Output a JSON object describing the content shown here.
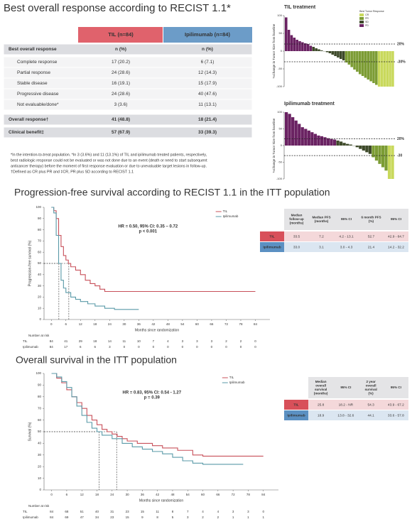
{
  "response_table": {
    "title": "Best overall response according to RECIST 1.1*",
    "columns": [
      "TIL (n=84)",
      "Ipilimumab (n=84)"
    ],
    "rows": [
      [
        "Best overall response",
        "n (%)",
        "n (%)"
      ],
      [
        "Complete response",
        "17 (20.2)",
        "6 (7.1)"
      ],
      [
        "Partial response",
        "24 (28.6)",
        "12 (14.3)"
      ],
      [
        "Stable disease",
        "16 (19.1)",
        "15 (17.9)"
      ],
      [
        "Progressive disease",
        "24 (28.6)",
        "40 (47.6)"
      ],
      [
        "Not evaluable/done*",
        "3 (3.6)",
        "11 (13.1)"
      ],
      [
        "Overall response†",
        "41 (48.8)",
        "18 (21.4)"
      ],
      [
        "Clinical benefit‡",
        "57 (67.9)",
        "33 (39.3)"
      ]
    ],
    "footnotes": [
      "*In the intention-to-treat population. *In 3 (3.6%) and 11 (13.1%) of TIL and ipilimumab treated patients, respectively,",
      "best radiologic response could not be evaluated or was not done due to an event (death or need to start subsequent",
      "anticancer therapy) before the moment of first response evaluation or due to unevaluable target lesions in follow-up.",
      "†Defined as CR plus PR and ‡CR, PR plus SD according to RECIST 1.1"
    ]
  },
  "chart_data": [
    {
      "type": "waterfall",
      "title": "TIL treatment",
      "title_color": "#a0405e",
      "ylabel": "%Change in Tumor Size from baseline",
      "ylim": [
        -100,
        100
      ],
      "yticks": [
        -100,
        -50,
        0,
        50,
        100
      ],
      "legend_title": "Best Tumor Response",
      "ref_lines": [
        {
          "value": 20,
          "label": "20%"
        },
        {
          "value": -30,
          "label": "-30%"
        }
      ],
      "series": [
        {
          "name": "CR",
          "color": "#c9d95c",
          "values": [
            -100,
            -100,
            -100,
            -100,
            -100,
            -100
          ]
        },
        {
          "name": "PR",
          "color": "#7c9c34",
          "values": [
            -32,
            -38,
            -45,
            -52,
            -58,
            -65,
            -70,
            -75,
            -80,
            -85,
            -90,
            -95
          ]
        },
        {
          "name": "SD",
          "color": "#3e4a2a",
          "values": [
            12,
            8,
            5,
            2,
            0,
            -3,
            -6,
            -10,
            -14,
            -18,
            -22,
            -26
          ]
        },
        {
          "name": "PD",
          "color": "#6a2262",
          "values": [
            95,
            60,
            45,
            38,
            32,
            28,
            25,
            22,
            20,
            15
          ]
        }
      ]
    },
    {
      "type": "waterfall",
      "title": "Ipilimumab treatment",
      "title_color": "#4a8aa8",
      "ylabel": "%Change in Tumor Size from baseline",
      "ylim": [
        -100,
        100
      ],
      "yticks": [
        -100,
        -50,
        0,
        50,
        100
      ],
      "ref_lines": [
        {
          "value": 20,
          "label": "20%"
        },
        {
          "value": -30,
          "label": "-30"
        }
      ],
      "series": [
        {
          "name": "CR",
          "color": "#c9d95c",
          "values": [
            -100,
            -100
          ]
        },
        {
          "name": "PR",
          "color": "#7c9c34",
          "values": [
            -35,
            -45,
            -55,
            -65,
            -75
          ]
        },
        {
          "name": "SD",
          "color": "#3e4a2a",
          "values": [
            15,
            12,
            8,
            5,
            3,
            0,
            -5,
            -10,
            -15,
            -20,
            -25
          ]
        },
        {
          "name": "PD",
          "color": "#6a2262",
          "values": [
            100,
            95,
            85,
            75,
            65,
            55,
            50,
            45,
            40,
            35,
            30,
            28,
            25,
            22,
            20,
            18
          ]
        }
      ]
    },
    {
      "type": "step",
      "title": "Progression-free survival according to RECIST 1.1 in the ITT population",
      "xlabel": "Months since randomization",
      "ylabel": "Progression-free survival (%)",
      "xlim": [
        -3,
        90
      ],
      "xticks": [
        0,
        6,
        12,
        18,
        24,
        30,
        36,
        42,
        48,
        54,
        60,
        66,
        72,
        78,
        84
      ],
      "ylim": [
        0,
        100
      ],
      "yticks": [
        0,
        10,
        20,
        30,
        40,
        50,
        60,
        70,
        80,
        90,
        100
      ],
      "annotations": [
        "HR = 0.50, 95% CI: 0.35 – 0.72",
        "p < 0.001"
      ],
      "series": [
        {
          "name": "TIL",
          "color": "#c8505a",
          "x": [
            0,
            1,
            2,
            3,
            4,
            5,
            6,
            7,
            8,
            10,
            12,
            14,
            16,
            18,
            20,
            22,
            84
          ],
          "values": [
            100,
            97,
            90,
            75,
            65,
            57,
            53,
            50,
            47,
            44,
            40,
            35,
            32,
            30,
            27,
            25,
            25
          ]
        },
        {
          "name": "Ipilimumab",
          "color": "#5a9aa8",
          "x": [
            0,
            1,
            2,
            3,
            4,
            5,
            6,
            8,
            10,
            12,
            15,
            18,
            22,
            26,
            36
          ],
          "values": [
            100,
            95,
            75,
            50,
            35,
            28,
            24,
            20,
            18,
            16,
            14,
            12,
            10,
            9,
            9
          ]
        }
      ],
      "risk": {
        "label": "Number at risk",
        "rows": [
          {
            "name": "TIL",
            "values": [
              84,
              41,
              29,
              18,
              14,
              11,
              10,
              7,
              4,
              3,
              3,
              3,
              2,
              2,
              0
            ]
          },
          {
            "name": "Ipilimumab",
            "values": [
              84,
              17,
              6,
              6,
              3,
              0,
              0,
              0,
              0,
              0,
              0,
              0,
              0,
              0,
              0
            ]
          }
        ]
      },
      "table": {
        "header": [
          "Median follow-up (months)",
          "Median PFS (months)",
          "95% CI",
          "6 month PFS (%)",
          "95% CI"
        ],
        "rows": [
          [
            "TIL",
            "33.5",
            7.2,
            "4.2 - 13.1",
            "52.7",
            "42.9 - 64.7"
          ],
          [
            "Ipilimumab",
            "33.0",
            3.1,
            "3.0 - 4.3",
            "21.4",
            "14.2 - 32.2"
          ]
        ]
      }
    },
    {
      "type": "step",
      "title": "Overall survival in the ITT population",
      "xlabel": "Months since randomization",
      "ylabel": "Survival (%)",
      "xlim": [
        -3,
        90
      ],
      "xticks": [
        0,
        6,
        12,
        18,
        24,
        30,
        36,
        42,
        48,
        54,
        60,
        66,
        72,
        78,
        84
      ],
      "ylim": [
        0,
        100
      ],
      "yticks": [
        0,
        10,
        20,
        30,
        40,
        50,
        60,
        70,
        80,
        90,
        100
      ],
      "annotations": [
        "HR = 0.83, 95% CI: 0.54 - 1.27",
        "p = 0.39"
      ],
      "series": [
        {
          "name": "TIL",
          "color": "#c8505a",
          "x": [
            0,
            2,
            4,
            6,
            8,
            10,
            12,
            14,
            16,
            18,
            20,
            22,
            24,
            26,
            28,
            30,
            34,
            40,
            44,
            50,
            56,
            60,
            84
          ],
          "values": [
            100,
            96,
            92,
            86,
            80,
            75,
            70,
            64,
            60,
            56,
            52,
            50,
            48,
            46,
            44,
            42,
            40,
            38,
            36,
            34,
            30,
            29,
            29
          ]
        },
        {
          "name": "Ipilimumab",
          "color": "#5a9aa8",
          "x": [
            0,
            2,
            4,
            6,
            8,
            10,
            12,
            14,
            16,
            18,
            20,
            24,
            28,
            32,
            36,
            40,
            44,
            48,
            52,
            56,
            60,
            76
          ],
          "values": [
            100,
            97,
            93,
            88,
            80,
            72,
            64,
            58,
            53,
            50,
            47,
            44,
            40,
            37,
            35,
            33,
            31,
            28,
            25,
            23,
            22,
            22
          ]
        }
      ],
      "risk": {
        "label": "Number at risk",
        "rows": [
          {
            "name": "TIL",
            "values": [
              84,
              68,
              51,
              40,
              31,
              23,
              15,
              11,
              8,
              7,
              4,
              4,
              3,
              3,
              0
            ]
          },
          {
            "name": "Ipilimumab",
            "values": [
              84,
              69,
              47,
              34,
              23,
              15,
              9,
              8,
              5,
              3,
              2,
              2,
              1,
              1,
              1
            ]
          }
        ]
      },
      "table": {
        "header": [
          "Median overall survival (months)",
          "95% CI",
          "2 year overall survival (%)",
          "95% CI"
        ],
        "rows": [
          [
            "TIL",
            25.8,
            "18.2 - NR",
            "54.3",
            "43.9 - 67.2"
          ],
          [
            "Ipilimumab",
            18.9,
            "13.8 - 32.6",
            "44.1",
            "33.6 - 57.8"
          ]
        ]
      }
    }
  ]
}
